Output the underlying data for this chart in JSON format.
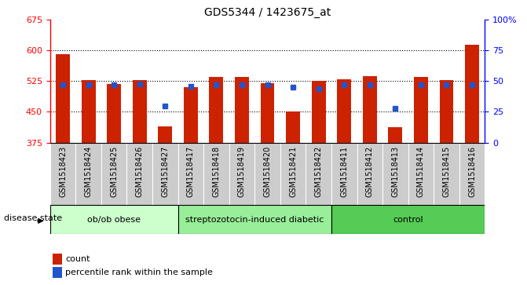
{
  "title": "GDS5344 / 1423675_at",
  "samples": [
    "GSM1518423",
    "GSM1518424",
    "GSM1518425",
    "GSM1518426",
    "GSM1518427",
    "GSM1518417",
    "GSM1518418",
    "GSM1518419",
    "GSM1518420",
    "GSM1518421",
    "GSM1518422",
    "GSM1518411",
    "GSM1518412",
    "GSM1518413",
    "GSM1518414",
    "GSM1518415",
    "GSM1518416"
  ],
  "counts": [
    591,
    527,
    518,
    527,
    415,
    510,
    535,
    535,
    520,
    450,
    525,
    530,
    538,
    413,
    535,
    527,
    615
  ],
  "percentile_ranks": [
    47,
    47,
    47,
    48,
    30,
    46,
    47,
    47,
    47,
    45,
    44,
    47,
    47,
    28,
    47,
    47,
    47
  ],
  "ymin": 375,
  "ymax": 675,
  "yticks": [
    375,
    450,
    525,
    600,
    675
  ],
  "right_yticks": [
    0,
    25,
    50,
    75,
    100
  ],
  "grid_values": [
    450,
    525,
    600
  ],
  "bar_color": "#cc2200",
  "dot_color": "#2255cc",
  "groups": [
    {
      "label": "ob/ob obese",
      "start": 0,
      "end": 5
    },
    {
      "label": "streptozotocin-induced diabetic",
      "start": 5,
      "end": 11
    },
    {
      "label": "control",
      "start": 11,
      "end": 17
    }
  ],
  "group_colors": [
    "#ccffcc",
    "#99ee99",
    "#55cc55"
  ],
  "tick_bg_color": "#cccccc",
  "xlabel_text": "disease state",
  "legend_count_label": "count",
  "legend_percentile_label": "percentile rank within the sample",
  "count_legend_color": "#cc2200",
  "percentile_legend_color": "#2255cc",
  "title_fontsize": 10,
  "tick_fontsize": 7,
  "group_fontsize": 8
}
